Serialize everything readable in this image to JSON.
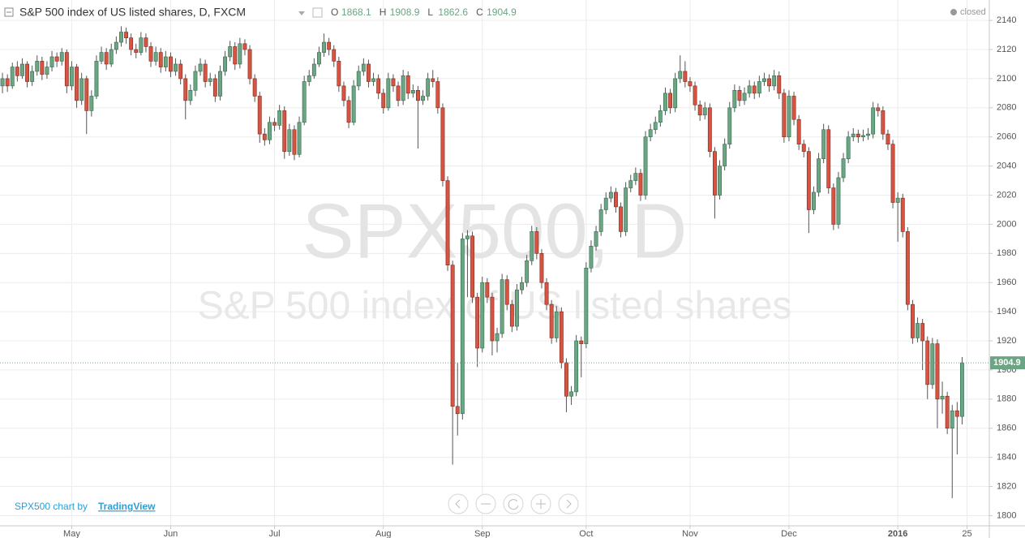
{
  "chart_data": {
    "type": "candlestick",
    "title": "S&P 500 index of US listed shares, D, FXCM",
    "status": "closed",
    "ohlc_letters": [
      "O",
      "H",
      "L",
      "C"
    ],
    "watermark": "SPX500, D",
    "watermark_subtitle": "S&P 500 index of US listed shares",
    "credit": "SPX500 chart by",
    "credit_link": "TradingView",
    "up_color": "#6ba583",
    "down_color": "#d75442",
    "grid": true,
    "ylim": [
      1793,
      2154
    ],
    "yticks": [
      1800,
      1820,
      1840,
      1860,
      1880,
      1900,
      1920,
      1940,
      1960,
      1980,
      2000,
      2020,
      2040,
      2060,
      2080,
      2100,
      2120,
      2140
    ],
    "xlim": [
      -0.5,
      199.5
    ],
    "xticks": [
      {
        "value": 14,
        "label": "May"
      },
      {
        "value": 34,
        "label": "Jun"
      },
      {
        "value": 55,
        "label": "Jul"
      },
      {
        "value": 77,
        "label": "Aug"
      },
      {
        "value": 97,
        "label": "Sep"
      },
      {
        "value": 118,
        "label": "Oct"
      },
      {
        "value": 139,
        "label": "Nov"
      },
      {
        "value": 159,
        "label": "Dec"
      },
      {
        "value": 181,
        "label": "2016"
      },
      {
        "value": 195,
        "label": "25"
      }
    ],
    "ohlc": [
      [
        2095,
        2104,
        2090,
        2100
      ],
      [
        2100,
        2103,
        2091,
        2095
      ],
      [
        2095,
        2111,
        2093,
        2108
      ],
      [
        2108,
        2112,
        2098,
        2102
      ],
      [
        2102,
        2114,
        2100,
        2110
      ],
      [
        2110,
        2112,
        2094,
        2098
      ],
      [
        2098,
        2109,
        2095,
        2105
      ],
      [
        2105,
        2116,
        2102,
        2112
      ],
      [
        2112,
        2115,
        2099,
        2103
      ],
      [
        2103,
        2112,
        2100,
        2108
      ],
      [
        2108,
        2119,
        2105,
        2115
      ],
      [
        2115,
        2118,
        2108,
        2112
      ],
      [
        2112,
        2121,
        2109,
        2118
      ],
      [
        2118,
        2120,
        2090,
        2095
      ],
      [
        2095,
        2112,
        2092,
        2108
      ],
      [
        2108,
        2110,
        2080,
        2085
      ],
      [
        2085,
        2104,
        2082,
        2100
      ],
      [
        2100,
        2102,
        2062,
        2078
      ],
      [
        2078,
        2092,
        2074,
        2088
      ],
      [
        2088,
        2116,
        2086,
        2112
      ],
      [
        2112,
        2122,
        2110,
        2118
      ],
      [
        2118,
        2121,
        2106,
        2110
      ],
      [
        2110,
        2124,
        2108,
        2120
      ],
      [
        2120,
        2129,
        2117,
        2125
      ],
      [
        2125,
        2136,
        2122,
        2132
      ],
      [
        2132,
        2135,
        2124,
        2128
      ],
      [
        2128,
        2131,
        2116,
        2120
      ],
      [
        2120,
        2124,
        2114,
        2118
      ],
      [
        2118,
        2132,
        2116,
        2128
      ],
      [
        2128,
        2131,
        2118,
        2122
      ],
      [
        2122,
        2125,
        2108,
        2112
      ],
      [
        2112,
        2122,
        2109,
        2118
      ],
      [
        2118,
        2121,
        2104,
        2108
      ],
      [
        2108,
        2119,
        2105,
        2115
      ],
      [
        2115,
        2118,
        2101,
        2105
      ],
      [
        2105,
        2114,
        2102,
        2110
      ],
      [
        2110,
        2113,
        2096,
        2100
      ],
      [
        2100,
        2103,
        2072,
        2085
      ],
      [
        2085,
        2096,
        2082,
        2092
      ],
      [
        2092,
        2109,
        2088,
        2105
      ],
      [
        2105,
        2114,
        2102,
        2110
      ],
      [
        2110,
        2113,
        2094,
        2098
      ],
      [
        2098,
        2104,
        2095,
        2100
      ],
      [
        2100,
        2103,
        2084,
        2088
      ],
      [
        2088,
        2109,
        2085,
        2105
      ],
      [
        2105,
        2119,
        2102,
        2115
      ],
      [
        2115,
        2126,
        2112,
        2122
      ],
      [
        2122,
        2125,
        2106,
        2110
      ],
      [
        2110,
        2128,
        2107,
        2124
      ],
      [
        2124,
        2127,
        2116,
        2120
      ],
      [
        2120,
        2123,
        2096,
        2100
      ],
      [
        2100,
        2103,
        2084,
        2088
      ],
      [
        2088,
        2091,
        2056,
        2062
      ],
      [
        2062,
        2066,
        2054,
        2058
      ],
      [
        2058,
        2074,
        2055,
        2070
      ],
      [
        2070,
        2073,
        2064,
        2068
      ],
      [
        2068,
        2082,
        2065,
        2078
      ],
      [
        2078,
        2081,
        2045,
        2050
      ],
      [
        2050,
        2069,
        2047,
        2065
      ],
      [
        2065,
        2068,
        2044,
        2048
      ],
      [
        2048,
        2074,
        2046,
        2070
      ],
      [
        2070,
        2102,
        2068,
        2098
      ],
      [
        2098,
        2106,
        2095,
        2102
      ],
      [
        2102,
        2114,
        2100,
        2110
      ],
      [
        2110,
        2122,
        2108,
        2118
      ],
      [
        2118,
        2131,
        2115,
        2125
      ],
      [
        2125,
        2128,
        2116,
        2120
      ],
      [
        2120,
        2123,
        2108,
        2112
      ],
      [
        2112,
        2115,
        2091,
        2095
      ],
      [
        2095,
        2098,
        2081,
        2085
      ],
      [
        2085,
        2088,
        2066,
        2070
      ],
      [
        2070,
        2099,
        2068,
        2095
      ],
      [
        2095,
        2109,
        2092,
        2105
      ],
      [
        2105,
        2114,
        2102,
        2110
      ],
      [
        2110,
        2113,
        2094,
        2098
      ],
      [
        2098,
        2104,
        2095,
        2100
      ],
      [
        2100,
        2103,
        2086,
        2090
      ],
      [
        2090,
        2093,
        2076,
        2080
      ],
      [
        2080,
        2104,
        2078,
        2100
      ],
      [
        2100,
        2103,
        2091,
        2095
      ],
      [
        2095,
        2098,
        2081,
        2085
      ],
      [
        2085,
        2106,
        2082,
        2102
      ],
      [
        2102,
        2105,
        2086,
        2090
      ],
      [
        2090,
        2096,
        2087,
        2092
      ],
      [
        2092,
        2095,
        2052,
        2085
      ],
      [
        2085,
        2092,
        2082,
        2088
      ],
      [
        2088,
        2104,
        2085,
        2100
      ],
      [
        2100,
        2106,
        2094,
        2098
      ],
      [
        2098,
        2101,
        2076,
        2080
      ],
      [
        2080,
        2083,
        2026,
        2030
      ],
      [
        2030,
        2033,
        1968,
        1972
      ],
      [
        1972,
        1975,
        1835,
        1875
      ],
      [
        1875,
        1905,
        1855,
        1870
      ],
      [
        1870,
        1994,
        1866,
        1990
      ],
      [
        1990,
        1996,
        1950,
        1992
      ],
      [
        1992,
        1995,
        1946,
        1950
      ],
      [
        1950,
        1953,
        1902,
        1915
      ],
      [
        1915,
        1964,
        1912,
        1960
      ],
      [
        1960,
        1963,
        1946,
        1950
      ],
      [
        1950,
        1953,
        1910,
        1920
      ],
      [
        1920,
        1929,
        1912,
        1925
      ],
      [
        1925,
        1966,
        1922,
        1962
      ],
      [
        1962,
        1965,
        1941,
        1945
      ],
      [
        1945,
        1948,
        1926,
        1930
      ],
      [
        1930,
        1959,
        1927,
        1955
      ],
      [
        1955,
        1964,
        1952,
        1960
      ],
      [
        1960,
        1979,
        1957,
        1975
      ],
      [
        1975,
        1999,
        1972,
        1995
      ],
      [
        1995,
        1998,
        1976,
        1980
      ],
      [
        1980,
        1983,
        1956,
        1960
      ],
      [
        1960,
        1963,
        1941,
        1945
      ],
      [
        1945,
        1948,
        1918,
        1922
      ],
      [
        1922,
        1944,
        1919,
        1940
      ],
      [
        1940,
        1943,
        1901,
        1905
      ],
      [
        1905,
        1908,
        1871,
        1882
      ],
      [
        1882,
        1889,
        1876,
        1885
      ],
      [
        1885,
        1924,
        1882,
        1920
      ],
      [
        1920,
        1923,
        1895,
        1918
      ],
      [
        1918,
        1974,
        1915,
        1970
      ],
      [
        1970,
        1989,
        1967,
        1985
      ],
      [
        1985,
        1999,
        1982,
        1995
      ],
      [
        1995,
        2014,
        1992,
        2010
      ],
      [
        2010,
        2022,
        2007,
        2018
      ],
      [
        2018,
        2026,
        2015,
        2022
      ],
      [
        2022,
        2025,
        2008,
        2012
      ],
      [
        2012,
        2015,
        1991,
        1995
      ],
      [
        1995,
        2029,
        1992,
        2025
      ],
      [
        2025,
        2034,
        2022,
        2030
      ],
      [
        2030,
        2039,
        2027,
        2035
      ],
      [
        2035,
        2038,
        2016,
        2020
      ],
      [
        2020,
        2064,
        2017,
        2060
      ],
      [
        2060,
        2069,
        2057,
        2065
      ],
      [
        2065,
        2074,
        2062,
        2070
      ],
      [
        2070,
        2082,
        2067,
        2078
      ],
      [
        2078,
        2094,
        2075,
        2090
      ],
      [
        2090,
        2093,
        2076,
        2080
      ],
      [
        2080,
        2104,
        2077,
        2100
      ],
      [
        2100,
        2116,
        2097,
        2105
      ],
      [
        2105,
        2112,
        2094,
        2098
      ],
      [
        2098,
        2101,
        2091,
        2095
      ],
      [
        2095,
        2098,
        2078,
        2082
      ],
      [
        2082,
        2085,
        2071,
        2075
      ],
      [
        2075,
        2084,
        2072,
        2080
      ],
      [
        2080,
        2083,
        2046,
        2050
      ],
      [
        2050,
        2053,
        2004,
        2020
      ],
      [
        2020,
        2044,
        2017,
        2040
      ],
      [
        2040,
        2059,
        2037,
        2055
      ],
      [
        2055,
        2084,
        2052,
        2080
      ],
      [
        2080,
        2096,
        2077,
        2092
      ],
      [
        2092,
        2095,
        2081,
        2085
      ],
      [
        2085,
        2094,
        2082,
        2090
      ],
      [
        2090,
        2099,
        2087,
        2095
      ],
      [
        2095,
        2098,
        2086,
        2090
      ],
      [
        2090,
        2102,
        2087,
        2098
      ],
      [
        2098,
        2104,
        2095,
        2100
      ],
      [
        2100,
        2103,
        2091,
        2095
      ],
      [
        2095,
        2106,
        2092,
        2102
      ],
      [
        2102,
        2105,
        2086,
        2090
      ],
      [
        2090,
        2093,
        2056,
        2060
      ],
      [
        2060,
        2092,
        2057,
        2088
      ],
      [
        2088,
        2091,
        2068,
        2072
      ],
      [
        2072,
        2075,
        2051,
        2055
      ],
      [
        2055,
        2058,
        2046,
        2050
      ],
      [
        2050,
        2053,
        1994,
        2010
      ],
      [
        2010,
        2026,
        2007,
        2022
      ],
      [
        2022,
        2049,
        2019,
        2045
      ],
      [
        2045,
        2069,
        2042,
        2065
      ],
      [
        2065,
        2068,
        2021,
        2025
      ],
      [
        2025,
        2028,
        1996,
        2000
      ],
      [
        2000,
        2036,
        1997,
        2032
      ],
      [
        2032,
        2049,
        2029,
        2045
      ],
      [
        2045,
        2064,
        2042,
        2060
      ],
      [
        2060,
        2066,
        2057,
        2062
      ],
      [
        2062,
        2065,
        2056,
        2060
      ],
      [
        2060,
        2065,
        2057,
        2061
      ],
      [
        2061,
        2066,
        2058,
        2062
      ],
      [
        2062,
        2084,
        2059,
        2080
      ],
      [
        2080,
        2083,
        2074,
        2078
      ],
      [
        2078,
        2081,
        2058,
        2062
      ],
      [
        2062,
        2065,
        2051,
        2055
      ],
      [
        2055,
        2058,
        2011,
        2015
      ],
      [
        2015,
        2022,
        1988,
        2018
      ],
      [
        2018,
        2021,
        1991,
        1995
      ],
      [
        1995,
        1998,
        1941,
        1945
      ],
      [
        1945,
        1948,
        1918,
        1922
      ],
      [
        1922,
        1936,
        1919,
        1932
      ],
      [
        1932,
        1935,
        1900,
        1920
      ],
      [
        1920,
        1923,
        1880,
        1890
      ],
      [
        1890,
        1922,
        1887,
        1918
      ],
      [
        1918,
        1921,
        1860,
        1880
      ],
      [
        1880,
        1892,
        1870,
        1882
      ],
      [
        1882,
        1885,
        1856,
        1860
      ],
      [
        1860,
        1876,
        1812,
        1872
      ],
      [
        1872,
        1878,
        1842,
        1868.1
      ],
      [
        1868.1,
        1908.9,
        1862.6,
        1904.9
      ]
    ]
  }
}
